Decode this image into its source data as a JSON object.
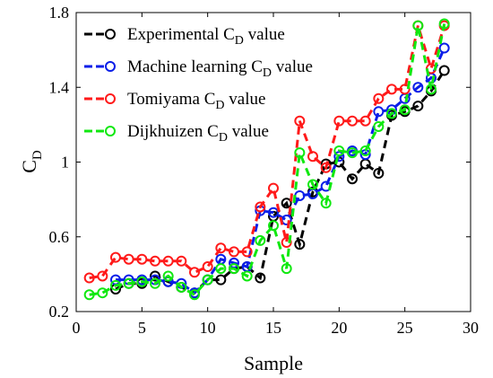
{
  "chart_data": {
    "type": "line",
    "xlabel": "Sample",
    "ylabel": {
      "main": "C",
      "sub": "D"
    },
    "xlim": [
      0,
      30
    ],
    "ylim": [
      0.2,
      1.8
    ],
    "xticks": [
      0,
      5,
      10,
      15,
      20,
      25,
      30
    ],
    "yticks": [
      0.2,
      0.6,
      1,
      1.4,
      1.8
    ],
    "ytick_labels": [
      "0.2",
      "0.6",
      "1",
      "1.4",
      "1.8"
    ],
    "grid": false,
    "legend_position": "top-left",
    "x": [
      1,
      2,
      3,
      4,
      5,
      6,
      7,
      8,
      9,
      10,
      11,
      12,
      13,
      14,
      15,
      16,
      17,
      18,
      19,
      20,
      21,
      22,
      23,
      24,
      25,
      26,
      27,
      28
    ],
    "series": [
      {
        "name": {
          "main": "Experimental C",
          "sub": "D",
          "tail": " value"
        },
        "color": "#000000",
        "start_index": 2,
        "values": [
          null,
          null,
          0.32,
          0.35,
          0.35,
          0.39,
          0.36,
          0.33,
          0.3,
          0.37,
          0.37,
          0.43,
          0.44,
          0.38,
          0.71,
          0.78,
          0.56,
          0.84,
          0.99,
          1.0,
          0.91,
          0.99,
          0.94,
          1.25,
          1.27,
          1.3,
          1.38,
          1.49
        ]
      },
      {
        "name": {
          "main": "Machine learning C",
          "sub": "D",
          "tail": " value"
        },
        "color": "#0a1ee8",
        "start_index": 2,
        "values": [
          null,
          null,
          0.37,
          0.37,
          0.37,
          0.37,
          0.36,
          0.35,
          0.3,
          0.37,
          0.48,
          0.46,
          0.44,
          0.74,
          0.73,
          0.69,
          0.82,
          0.83,
          0.87,
          1.03,
          1.06,
          1.04,
          1.27,
          1.28,
          1.34,
          1.4,
          1.45,
          1.61
        ]
      },
      {
        "name": {
          "main": "Tomiyama C",
          "sub": "D",
          "tail": " value"
        },
        "color": "#ff1a1a",
        "start_index": 0,
        "values": [
          0.38,
          0.39,
          0.49,
          0.48,
          0.48,
          0.47,
          0.47,
          0.47,
          0.41,
          0.44,
          0.54,
          0.52,
          0.52,
          0.76,
          0.86,
          0.57,
          1.22,
          1.03,
          0.97,
          1.22,
          1.22,
          1.22,
          1.34,
          1.39,
          1.39,
          1.73,
          1.5,
          1.73
        ]
      },
      {
        "name": {
          "main": "Dijkhuizen C",
          "sub": "D",
          "tail": " value"
        },
        "color": "#10e810",
        "start_index": 0,
        "values": [
          0.29,
          0.3,
          0.34,
          0.35,
          0.36,
          0.35,
          0.39,
          0.33,
          0.29,
          0.37,
          0.43,
          0.43,
          0.39,
          0.58,
          0.66,
          0.43,
          1.05,
          0.88,
          0.78,
          1.06,
          1.05,
          1.06,
          1.19,
          1.26,
          1.28,
          1.73,
          1.39,
          1.74
        ]
      }
    ]
  }
}
